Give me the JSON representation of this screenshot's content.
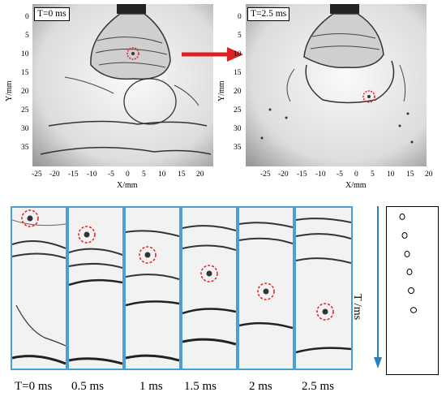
{
  "top_left": {
    "time_label": "T=0 ms",
    "ylabel": "Y/mm",
    "xlabel": "X/mm"
  },
  "top_right": {
    "time_label": "T=2.5 ms",
    "ylabel": "Y/mm",
    "xlabel": "X/mm"
  },
  "y_ticks": [
    "0",
    "5",
    "10",
    "15",
    "20",
    "25",
    "30",
    "35"
  ],
  "x_ticks": [
    "-25",
    "-20",
    "-15",
    "-10",
    "-5",
    "0",
    "5",
    "10",
    "15",
    "20"
  ],
  "time_axis_label": "T /ms",
  "strip_captions": [
    "T=0 ms",
    "0.5 ms",
    "1 ms",
    "1.5 ms",
    "2 ms",
    "2.5 ms"
  ],
  "colors": {
    "arrow": "#e02020",
    "strip_border": "#4a9fd4",
    "circle": "#e02020"
  }
}
